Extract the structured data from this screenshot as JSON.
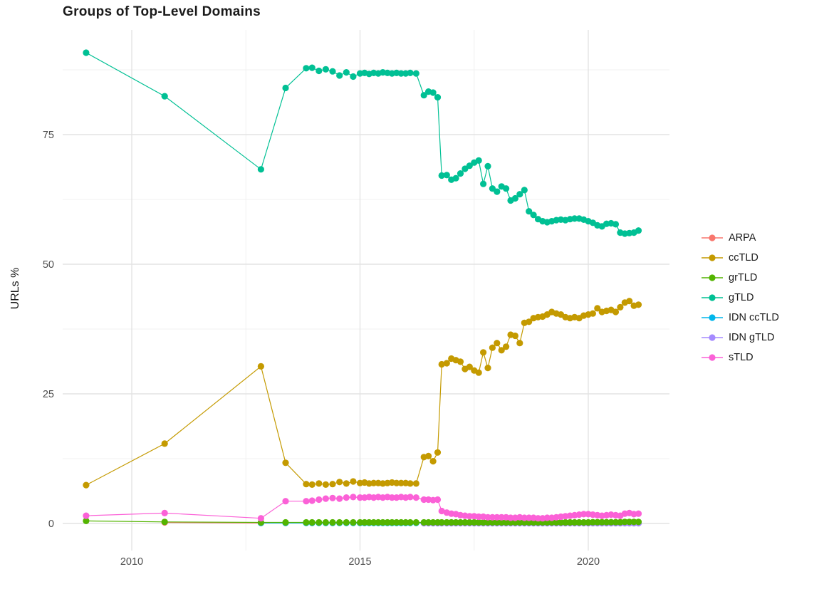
{
  "title": "Groups of Top-Level Domains",
  "chart_data": {
    "type": "line",
    "title": "Groups of Top-Level Domains",
    "xlabel": "",
    "ylabel": "URLs %",
    "grid": "on",
    "legend_position": "right",
    "xlim": [
      2008.5,
      2021.8
    ],
    "ylim": [
      -5.5,
      94.8
    ],
    "x_major_ticks": [
      2010,
      2015,
      2020
    ],
    "x_tick_labels": [
      "2010",
      "2015",
      "2020"
    ],
    "x_minor_gridlines": [
      2012.5,
      2017.5
    ],
    "y_major_ticks": [
      0,
      25,
      50,
      75
    ],
    "y_tick_labels": [
      "0",
      "25",
      "50",
      "75"
    ],
    "y_minor_gridlines": [
      12.5,
      37.5,
      62.5,
      87.5
    ],
    "x": [
      2009.0,
      2010.72,
      2012.83,
      2013.37,
      2013.82,
      2013.95,
      2014.1,
      2014.25,
      2014.4,
      2014.55,
      2014.7,
      2014.85,
      2015.0,
      2015.1,
      2015.2,
      2015.3,
      2015.4,
      2015.5,
      2015.6,
      2015.7,
      2015.8,
      2015.9,
      2016.0,
      2016.1,
      2016.23,
      2016.4,
      2016.5,
      2016.6,
      2016.7,
      2016.79,
      2016.9,
      2017.0,
      2017.1,
      2017.2,
      2017.3,
      2017.4,
      2017.5,
      2017.6,
      2017.7,
      2017.8,
      2017.9,
      2018.0,
      2018.1,
      2018.2,
      2018.3,
      2018.4,
      2018.5,
      2018.6,
      2018.7,
      2018.8,
      2018.9,
      2019.0,
      2019.1,
      2019.2,
      2019.3,
      2019.4,
      2019.5,
      2019.6,
      2019.7,
      2019.8,
      2019.9,
      2020.0,
      2020.1,
      2020.2,
      2020.3,
      2020.4,
      2020.5,
      2020.6,
      2020.7,
      2020.8,
      2020.9,
      2021.0,
      2021.1
    ],
    "series": [
      {
        "name": "ARPA",
        "color": "#F8766D",
        "values": [
          null,
          0.2,
          0.1,
          null,
          null,
          null,
          null,
          null,
          null,
          null,
          null,
          null,
          null,
          null,
          null,
          null,
          null,
          null,
          null,
          null,
          null,
          null,
          null,
          null,
          null,
          null,
          null,
          null,
          null,
          null,
          null,
          null,
          null,
          null,
          null,
          null,
          null,
          null,
          null,
          null,
          null,
          null,
          null,
          null,
          null,
          null,
          null,
          null,
          null,
          null,
          null,
          null,
          null,
          null,
          null,
          null,
          null,
          null,
          null,
          null,
          null,
          null,
          null,
          null,
          null,
          null,
          null,
          null,
          null,
          null,
          null,
          null,
          null
        ]
      },
      {
        "name": "ccTLD",
        "color": "#C49A00",
        "values": [
          7.4,
          15.4,
          30.3,
          11.7,
          7.6,
          7.5,
          7.7,
          7.5,
          7.6,
          8.0,
          7.7,
          8.1,
          7.8,
          7.9,
          7.7,
          7.8,
          7.8,
          7.7,
          7.8,
          7.9,
          7.8,
          7.8,
          7.8,
          7.7,
          7.7,
          12.8,
          13.0,
          12.0,
          13.7,
          30.7,
          30.9,
          31.8,
          31.5,
          31.2,
          29.8,
          30.2,
          29.5,
          29.1,
          33.0,
          30.0,
          33.9,
          34.8,
          33.4,
          34.1,
          36.4,
          36.2,
          34.8,
          38.7,
          38.9,
          39.6,
          39.8,
          39.9,
          40.3,
          40.8,
          40.5,
          40.3,
          39.8,
          39.6,
          39.8,
          39.6,
          40.1,
          40.3,
          40.5,
          41.5,
          40.8,
          41.0,
          41.2,
          40.8,
          41.7,
          42.6,
          42.9,
          42.0,
          42.2
        ]
      },
      {
        "name": "grTLD",
        "color": "#53B400",
        "values": [
          0.5,
          0.3,
          0.2,
          0.2,
          0.2,
          0.2,
          0.2,
          0.2,
          0.2,
          0.2,
          0.2,
          0.2,
          0.2,
          0.2,
          0.2,
          0.2,
          0.2,
          0.2,
          0.2,
          0.2,
          0.2,
          0.2,
          0.2,
          0.2,
          0.2,
          0.2,
          0.2,
          0.2,
          0.2,
          0.2,
          0.2,
          0.2,
          0.2,
          0.2,
          0.2,
          0.2,
          0.2,
          0.2,
          0.2,
          0.2,
          0.2,
          0.2,
          0.2,
          0.2,
          0.2,
          0.2,
          0.2,
          0.2,
          0.2,
          0.2,
          0.2,
          0.2,
          0.2,
          0.2,
          0.2,
          0.2,
          0.2,
          0.2,
          0.2,
          0.2,
          0.2,
          0.2,
          0.25,
          0.25,
          0.25,
          0.25,
          0.25,
          0.25,
          0.25,
          0.3,
          0.3,
          0.3,
          0.3
        ]
      },
      {
        "name": "gTLD",
        "color": "#00C094",
        "values": [
          90.8,
          82.4,
          68.3,
          84.0,
          87.8,
          87.9,
          87.3,
          87.6,
          87.2,
          86.4,
          87.0,
          86.2,
          86.8,
          86.9,
          86.7,
          86.9,
          86.8,
          87.0,
          86.9,
          86.8,
          86.9,
          86.8,
          86.8,
          86.9,
          86.8,
          82.6,
          83.3,
          83.1,
          82.2,
          67.1,
          67.2,
          66.3,
          66.6,
          67.5,
          68.4,
          69.0,
          69.6,
          70.0,
          65.5,
          68.9,
          64.6,
          64.0,
          65.0,
          64.6,
          62.3,
          62.7,
          63.5,
          64.3,
          60.2,
          59.5,
          58.7,
          58.3,
          58.1,
          58.3,
          58.5,
          58.6,
          58.5,
          58.7,
          58.8,
          58.8,
          58.6,
          58.3,
          58.0,
          57.5,
          57.3,
          57.8,
          57.9,
          57.7,
          56.1,
          55.9,
          56.0,
          56.1,
          56.5
        ]
      },
      {
        "name": "IDN ccTLD",
        "color": "#00B6EB",
        "values": [
          null,
          null,
          0.1,
          0.1,
          0.1,
          0.1,
          0.1,
          0.1,
          0.1,
          0.1,
          0.1,
          0.1,
          0.1,
          0.1,
          0.1,
          0.1,
          0.1,
          0.1,
          0.1,
          0.1,
          0.1,
          0.1,
          0.1,
          0.1,
          0.1,
          0.1,
          0.1,
          0.1,
          0.1,
          0.1,
          0.1,
          0.1,
          0.1,
          0.1,
          0.1,
          0.1,
          0.1,
          0.1,
          0.1,
          0.1,
          0.1,
          0.1,
          0.1,
          0.1,
          0.1,
          0.1,
          0.1,
          0.1,
          0.1,
          0.1,
          0.1,
          0.1,
          0.1,
          0.1,
          0.1,
          0.1,
          0.1,
          0.1,
          0.1,
          0.1,
          0.1,
          0.1,
          0.1,
          0.1,
          0.1,
          0.1,
          0.1,
          0.1,
          0.1,
          0.1,
          0.1,
          0.1,
          0.1
        ]
      },
      {
        "name": "IDN gTLD",
        "color": "#A58AFF",
        "values": [
          null,
          null,
          null,
          null,
          null,
          null,
          null,
          null,
          null,
          null,
          null,
          null,
          null,
          null,
          null,
          null,
          null,
          null,
          null,
          null,
          null,
          null,
          null,
          null,
          null,
          0.05,
          0.05,
          0.05,
          0.05,
          0.05,
          0.05,
          0.05,
          0.05,
          0.05,
          0.05,
          0.05,
          0.05,
          0.05,
          0.05,
          0.05,
          0.05,
          0.05,
          0.05,
          0.05,
          0.05,
          0.05,
          0.05,
          0.05,
          0.05,
          0.05,
          0.05,
          0.05,
          0.05,
          0.05,
          0.05,
          0.05,
          0.05,
          0.05,
          0.05,
          0.05,
          0.05,
          0.05,
          0.05,
          0.05,
          0.05,
          0.05,
          0.05,
          0.05,
          0.05,
          0.05,
          0.05,
          0.05,
          0.05
        ]
      },
      {
        "name": "sTLD",
        "color": "#FB61D7",
        "values": [
          1.5,
          2.0,
          1.0,
          4.3,
          4.3,
          4.4,
          4.6,
          4.8,
          4.9,
          4.8,
          5.0,
          5.1,
          5.0,
          5.0,
          5.1,
          5.0,
          5.1,
          5.0,
          5.1,
          5.0,
          5.0,
          5.1,
          5.0,
          5.1,
          5.0,
          4.6,
          4.6,
          4.5,
          4.6,
          2.4,
          2.1,
          1.9,
          1.8,
          1.6,
          1.5,
          1.4,
          1.4,
          1.3,
          1.3,
          1.2,
          1.2,
          1.2,
          1.2,
          1.2,
          1.1,
          1.1,
          1.2,
          1.1,
          1.1,
          1.1,
          1.0,
          1.0,
          1.1,
          1.1,
          1.2,
          1.3,
          1.4,
          1.5,
          1.6,
          1.7,
          1.8,
          1.8,
          1.7,
          1.6,
          1.5,
          1.6,
          1.7,
          1.6,
          1.5,
          1.9,
          2.0,
          1.8,
          1.9
        ]
      }
    ]
  },
  "legend": {
    "items": [
      "ARPA",
      "ccTLD",
      "grTLD",
      "gTLD",
      "IDN ccTLD",
      "IDN gTLD",
      "sTLD"
    ]
  },
  "style": {
    "grid_major_color": "#e3e3e3",
    "grid_minor_color": "#f0f0f0",
    "tick_label_color": "#4d4d4d"
  }
}
